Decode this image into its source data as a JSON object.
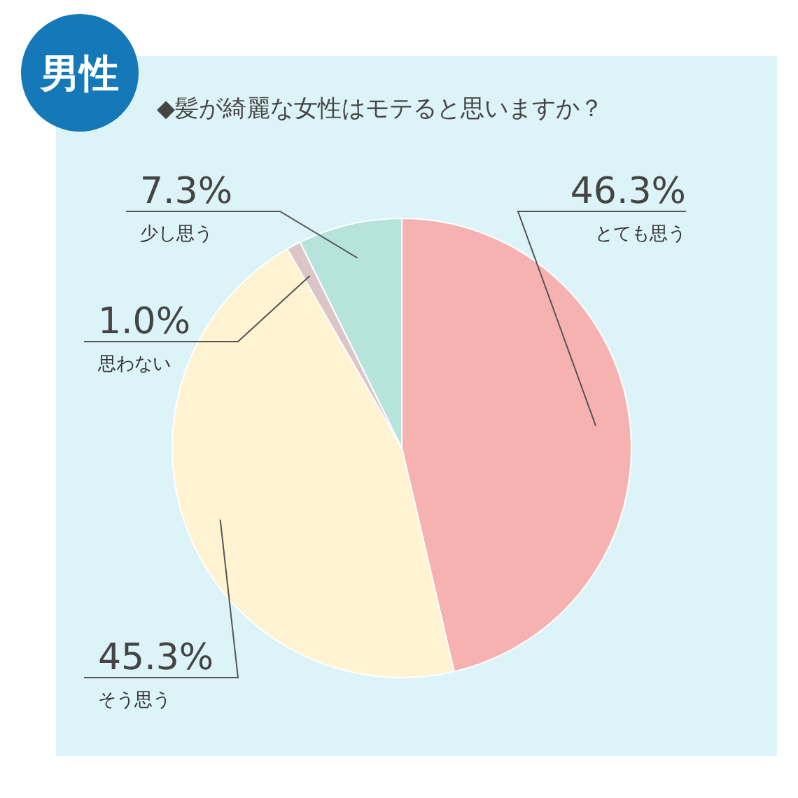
{
  "chart_data": {
    "type": "pie",
    "title": "◆髪が綺麗な女性はモテると思いますか？",
    "annotations": [
      "男性"
    ],
    "categories": [
      "とても思う",
      "そう思う",
      "思わない",
      "少し思う"
    ],
    "values": [
      46.3,
      45.3,
      1.0,
      7.3
    ],
    "value_labels": [
      "46.3%",
      "45.3%",
      "1.0%",
      "7.3%"
    ],
    "colors": [
      "#f6b1b1",
      "#fff3d1",
      "#dcc5c6",
      "#b6e3dc"
    ]
  }
}
